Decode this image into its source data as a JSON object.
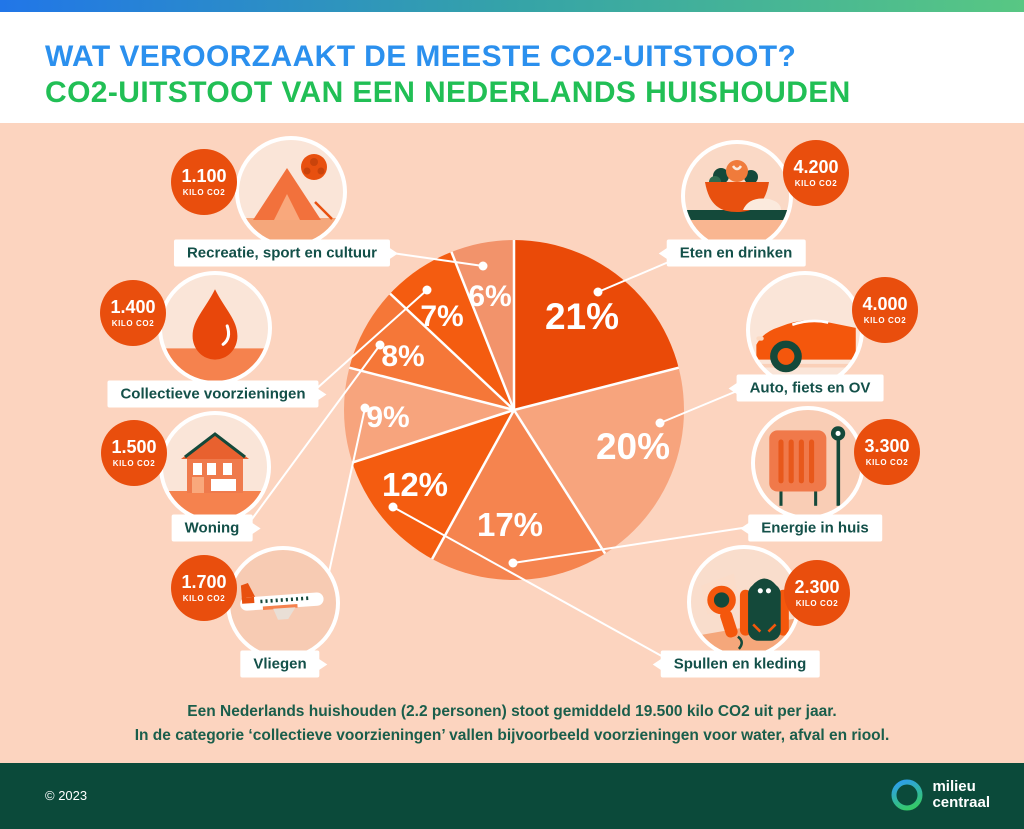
{
  "header": {
    "title_line1": "WAT VEROORZAAKT DE MEESTE CO2-UITSTOOT?",
    "title_line2": "CO2-UITSTOOT VAN EEN NEDERLANDS HUISHOUDEN"
  },
  "chart_data": {
    "type": "pie",
    "title": "CO2-uitstoot van een Nederlands huishouden",
    "start": "12 o'clock",
    "direction": "clockwise",
    "categories": [
      "Eten en drinken",
      "Auto, fiets en OV",
      "Energie in huis",
      "Spullen en kleding",
      "Vliegen",
      "Woning",
      "Collectieve voorzieningen",
      "Recreatie, sport en cultuur"
    ],
    "values": [
      21,
      20,
      17,
      12,
      9,
      8,
      7,
      6
    ],
    "value_unit": "%",
    "kilo_co2": [
      4200,
      4000,
      3300,
      2300,
      1700,
      1500,
      1400,
      1100
    ],
    "total_kilo_co2_per_jaar": 19500,
    "colors": [
      "#EA4A08",
      "#F7A47D",
      "#F5844F",
      "#F45C10",
      "#F7A47D",
      "#F57738",
      "#F45C10",
      "#F2936B"
    ],
    "legend_position": "around pie with callout lines"
  },
  "categories": [
    {
      "id": "eten",
      "label": "Eten en drinken",
      "percent": "21%",
      "badge_value": "4.200",
      "badge_unit": "KILO CO2",
      "icon": "salad-bowl-icon"
    },
    {
      "id": "auto",
      "label": "Auto, fiets en OV",
      "percent": "20%",
      "badge_value": "4.000",
      "badge_unit": "KILO CO2",
      "icon": "car-icon"
    },
    {
      "id": "energie",
      "label": "Energie in huis",
      "percent": "17%",
      "badge_value": "3.300",
      "badge_unit": "KILO CO2",
      "icon": "radiator-icon"
    },
    {
      "id": "spullen",
      "label": "Spullen en kleding",
      "percent": "12%",
      "badge_value": "2.300",
      "badge_unit": "KILO CO2",
      "icon": "backpack-hairdryer-icon"
    },
    {
      "id": "vliegen",
      "label": "Vliegen",
      "percent": "9%",
      "badge_value": "1.700",
      "badge_unit": "KILO CO2",
      "icon": "airplane-icon"
    },
    {
      "id": "woning",
      "label": "Woning",
      "percent": "8%",
      "badge_value": "1.500",
      "badge_unit": "KILO CO2",
      "icon": "house-icon"
    },
    {
      "id": "collectief",
      "label": "Collectieve voorzieningen",
      "percent": "7%",
      "badge_value": "1.400",
      "badge_unit": "KILO CO2",
      "icon": "water-drop-icon"
    },
    {
      "id": "recreatie",
      "label": "Recreatie, sport en cultuur",
      "percent": "6%",
      "badge_value": "1.100",
      "badge_unit": "KILO CO2",
      "icon": "tent-ball-icon"
    }
  ],
  "footnote": {
    "line1": "Een Nederlands huishouden (2.2 personen) stoot gemiddeld 19.500 kilo CO2 uit per jaar.",
    "line2": "In de categorie ‘collectieve voorzieningen’ vallen bijvoorbeeld voorzieningen voor water, afval en riool."
  },
  "footer": {
    "copyright": "© 2023",
    "logo_line1": "milieu",
    "logo_line2": "centraal"
  },
  "colors": {
    "topbar_gradient": [
      "#2176E8",
      "#35A3A8",
      "#58C783"
    ],
    "title_blue": "#2B90EE",
    "title_green": "#21BF55",
    "background_peach": "#FCD4BF",
    "footer_green": "#0B4A3A",
    "label_text_green": "#135049",
    "badge_orange": "#E94E0D",
    "callout_line": "#FFFFFF"
  }
}
